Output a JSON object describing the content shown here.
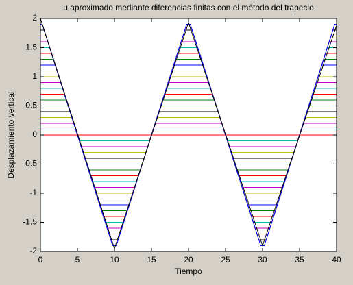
{
  "chart_data": {
    "type": "line",
    "title": "u aproximado mediante diferencias finitas con el método del trapecio",
    "x_label": "Tiempo",
    "y_label": "Desplazamiento vertical",
    "xlim": [
      0,
      40
    ],
    "ylim": [
      -2,
      2
    ],
    "xticks": [
      0,
      5,
      10,
      15,
      20,
      25,
      30,
      35,
      40
    ],
    "yticks": [
      -2,
      -1.5,
      -1,
      -0.5,
      0,
      0.5,
      1,
      1.5,
      2
    ],
    "series": [
      {
        "color": "#ff0000",
        "x": [
          0,
          5,
          5,
          15,
          15,
          25,
          25,
          35,
          35,
          40
        ],
        "values": [
          0,
          0,
          0,
          0,
          0,
          0,
          0,
          0,
          0,
          0
        ]
      },
      {
        "color": "#00bfbf",
        "x": [
          0,
          4.75,
          5.25,
          14.75,
          15.25,
          24.75,
          25.25,
          34.75,
          35.25,
          40
        ],
        "values": [
          0.1,
          0.1,
          -0.1,
          -0.1,
          0.1,
          0.1,
          -0.1,
          -0.1,
          0.1,
          0.1
        ]
      },
      {
        "color": "#bf00bf",
        "x": [
          0,
          4.5,
          5.5,
          14.5,
          15.5,
          24.5,
          25.5,
          34.5,
          35.5,
          40
        ],
        "values": [
          0.2,
          0.2,
          -0.2,
          -0.2,
          0.2,
          0.2,
          -0.2,
          -0.2,
          0.2,
          0.2
        ]
      },
      {
        "color": "#bfbf00",
        "x": [
          0,
          4.25,
          5.75,
          14.25,
          15.75,
          24.25,
          25.75,
          34.25,
          35.75,
          40
        ],
        "values": [
          0.3,
          0.3,
          -0.3,
          -0.3,
          0.3,
          0.3,
          -0.3,
          -0.3,
          0.3,
          0.3
        ]
      },
      {
        "color": "#000000",
        "x": [
          0,
          4,
          6,
          14,
          16,
          24,
          26,
          34,
          36,
          40
        ],
        "values": [
          0.4,
          0.4,
          -0.4,
          -0.4,
          0.4,
          0.4,
          -0.4,
          -0.4,
          0.4,
          0.4
        ]
      },
      {
        "color": "#0000ff",
        "x": [
          0,
          3.75,
          6.25,
          13.75,
          16.25,
          23.75,
          26.25,
          33.75,
          36.25,
          40
        ],
        "values": [
          0.5,
          0.5,
          -0.5,
          -0.5,
          0.5,
          0.5,
          -0.5,
          -0.5,
          0.5,
          0.5
        ]
      },
      {
        "color": "#008000",
        "x": [
          0,
          3.5,
          6.5,
          13.5,
          16.5,
          23.5,
          26.5,
          33.5,
          36.5,
          40
        ],
        "values": [
          0.6,
          0.6,
          -0.6,
          -0.6,
          0.6,
          0.6,
          -0.6,
          -0.6,
          0.6,
          0.6
        ]
      },
      {
        "color": "#ff0000",
        "x": [
          0,
          3.25,
          6.75,
          13.25,
          16.75,
          23.25,
          26.75,
          33.25,
          36.75,
          40
        ],
        "values": [
          0.7,
          0.7,
          -0.7,
          -0.7,
          0.7,
          0.7,
          -0.7,
          -0.7,
          0.7,
          0.7
        ]
      },
      {
        "color": "#00bfbf",
        "x": [
          0,
          3,
          7,
          13,
          17,
          23,
          27,
          33,
          37,
          40
        ],
        "values": [
          0.8,
          0.8,
          -0.8,
          -0.8,
          0.8,
          0.8,
          -0.8,
          -0.8,
          0.8,
          0.8
        ]
      },
      {
        "color": "#bf00bf",
        "x": [
          0,
          2.75,
          7.25,
          12.75,
          17.25,
          22.75,
          27.25,
          32.75,
          37.25,
          40
        ],
        "values": [
          0.9,
          0.9,
          -0.9,
          -0.9,
          0.9,
          0.9,
          -0.9,
          -0.9,
          0.9,
          0.9
        ]
      },
      {
        "color": "#bfbf00",
        "x": [
          0,
          2.5,
          7.5,
          12.5,
          17.5,
          22.5,
          27.5,
          32.5,
          37.5,
          40
        ],
        "values": [
          1,
          1,
          -1,
          -1,
          1,
          1,
          -1,
          -1,
          1,
          1
        ]
      },
      {
        "color": "#000000",
        "x": [
          0,
          2.25,
          7.75,
          12.25,
          17.75,
          22.25,
          27.75,
          32.25,
          37.75,
          40
        ],
        "values": [
          1.1,
          1.1,
          -1.1,
          -1.1,
          1.1,
          1.1,
          -1.1,
          -1.1,
          1.1,
          1.1
        ]
      },
      {
        "color": "#0000ff",
        "x": [
          0,
          2,
          8,
          12,
          18,
          22,
          28,
          32,
          38,
          40
        ],
        "values": [
          1.2,
          1.2,
          -1.2,
          -1.2,
          1.2,
          1.2,
          -1.2,
          -1.2,
          1.2,
          1.2
        ]
      },
      {
        "color": "#008000",
        "x": [
          0,
          1.75,
          8.25,
          11.75,
          18.25,
          21.75,
          28.25,
          31.75,
          38.25,
          40
        ],
        "values": [
          1.3,
          1.3,
          -1.3,
          -1.3,
          1.3,
          1.3,
          -1.3,
          -1.3,
          1.3,
          1.3
        ]
      },
      {
        "color": "#ff0000",
        "x": [
          0,
          1.5,
          8.5,
          11.5,
          18.5,
          21.5,
          28.5,
          31.5,
          38.5,
          40
        ],
        "values": [
          1.4,
          1.4,
          -1.4,
          -1.4,
          1.4,
          1.4,
          -1.4,
          -1.4,
          1.4,
          1.4
        ]
      },
      {
        "color": "#00bfbf",
        "x": [
          0,
          1.25,
          8.75,
          11.25,
          18.75,
          21.25,
          28.75,
          31.25,
          38.75,
          40
        ],
        "values": [
          1.5,
          1.5,
          -1.5,
          -1.5,
          1.5,
          1.5,
          -1.5,
          -1.5,
          1.5,
          1.5
        ]
      },
      {
        "color": "#bf00bf",
        "x": [
          0,
          1,
          9,
          11,
          19,
          21,
          29,
          31,
          39,
          40
        ],
        "values": [
          1.6,
          1.6,
          -1.6,
          -1.6,
          1.6,
          1.6,
          -1.6,
          -1.6,
          1.6,
          1.6
        ]
      },
      {
        "color": "#bfbf00",
        "x": [
          0,
          0.75,
          9.25,
          10.75,
          19.25,
          20.75,
          29.25,
          30.75,
          39.25,
          40
        ],
        "values": [
          1.7,
          1.7,
          -1.7,
          -1.7,
          1.7,
          1.7,
          -1.7,
          -1.7,
          1.7,
          1.7
        ]
      },
      {
        "color": "#000000",
        "x": [
          0,
          0.5,
          9.5,
          10.5,
          19.5,
          20.5,
          29.5,
          30.5,
          39.5,
          40
        ],
        "values": [
          1.8,
          1.8,
          -1.8,
          -1.8,
          1.8,
          1.8,
          -1.8,
          -1.8,
          1.8,
          1.8
        ]
      },
      {
        "color": "#0000ff",
        "x": [
          0,
          0.25,
          9.75,
          10.25,
          19.75,
          20.25,
          29.75,
          30.25,
          39.75,
          40
        ],
        "values": [
          1.9,
          1.9,
          -1.9,
          -1.9,
          1.9,
          1.9,
          -1.9,
          -1.9,
          1.9,
          1.9
        ]
      },
      {
        "color": "#000000",
        "x": [
          0,
          10,
          20,
          30,
          40
        ],
        "values": [
          2,
          -1.95,
          1.93,
          -1.9,
          1.88
        ]
      }
    ]
  }
}
